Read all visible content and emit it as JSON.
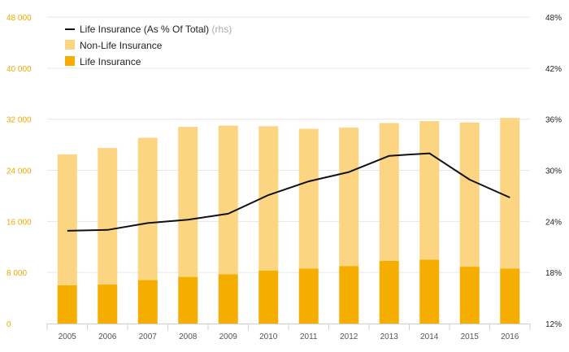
{
  "chart_data": {
    "type": "bar",
    "stacked": true,
    "categories": [
      "2005",
      "2006",
      "2007",
      "2008",
      "2009",
      "2010",
      "2011",
      "2012",
      "2013",
      "2014",
      "2015",
      "2016"
    ],
    "series": [
      {
        "name": "Life Insurance",
        "kind": "bar",
        "axis": "left",
        "color": "#f5ad00",
        "values": [
          6000,
          6100,
          6800,
          7300,
          7700,
          8300,
          8600,
          9000,
          9800,
          10000,
          8900,
          8600
        ]
      },
      {
        "name": "Non-Life Insurance",
        "kind": "bar",
        "axis": "left",
        "color": "#fbd581",
        "values": [
          20500,
          21400,
          22300,
          23500,
          23300,
          22600,
          21900,
          21700,
          21600,
          21700,
          22600,
          23600
        ]
      },
      {
        "name": "Life Insurance (As % Of Total)",
        "legend_suffix": "(rhs)",
        "kind": "line",
        "axis": "right",
        "color": "#111111",
        "values": [
          22.9,
          23.0,
          23.8,
          24.2,
          24.9,
          27.1,
          28.7,
          29.8,
          31.7,
          32.0,
          28.9,
          26.8
        ]
      }
    ],
    "y_left": {
      "ylim": [
        0,
        48000
      ],
      "ticks": [
        0,
        8000,
        16000,
        24000,
        32000,
        40000,
        48000
      ],
      "tick_labels": [
        "0",
        "8 000",
        "16 000",
        "24 000",
        "32 000",
        "40 000",
        "48 000"
      ],
      "color": "#f0a800"
    },
    "y_right": {
      "ylim": [
        12,
        48
      ],
      "ticks": [
        12,
        18,
        24,
        30,
        36,
        42,
        48
      ],
      "tick_labels": [
        "12%",
        "18%",
        "24%",
        "30%",
        "36%",
        "42%",
        "48%"
      ],
      "color": "#222222"
    },
    "grid": true,
    "legend_position": "top-left",
    "title": "",
    "xlabel": "",
    "ylabel": ""
  }
}
